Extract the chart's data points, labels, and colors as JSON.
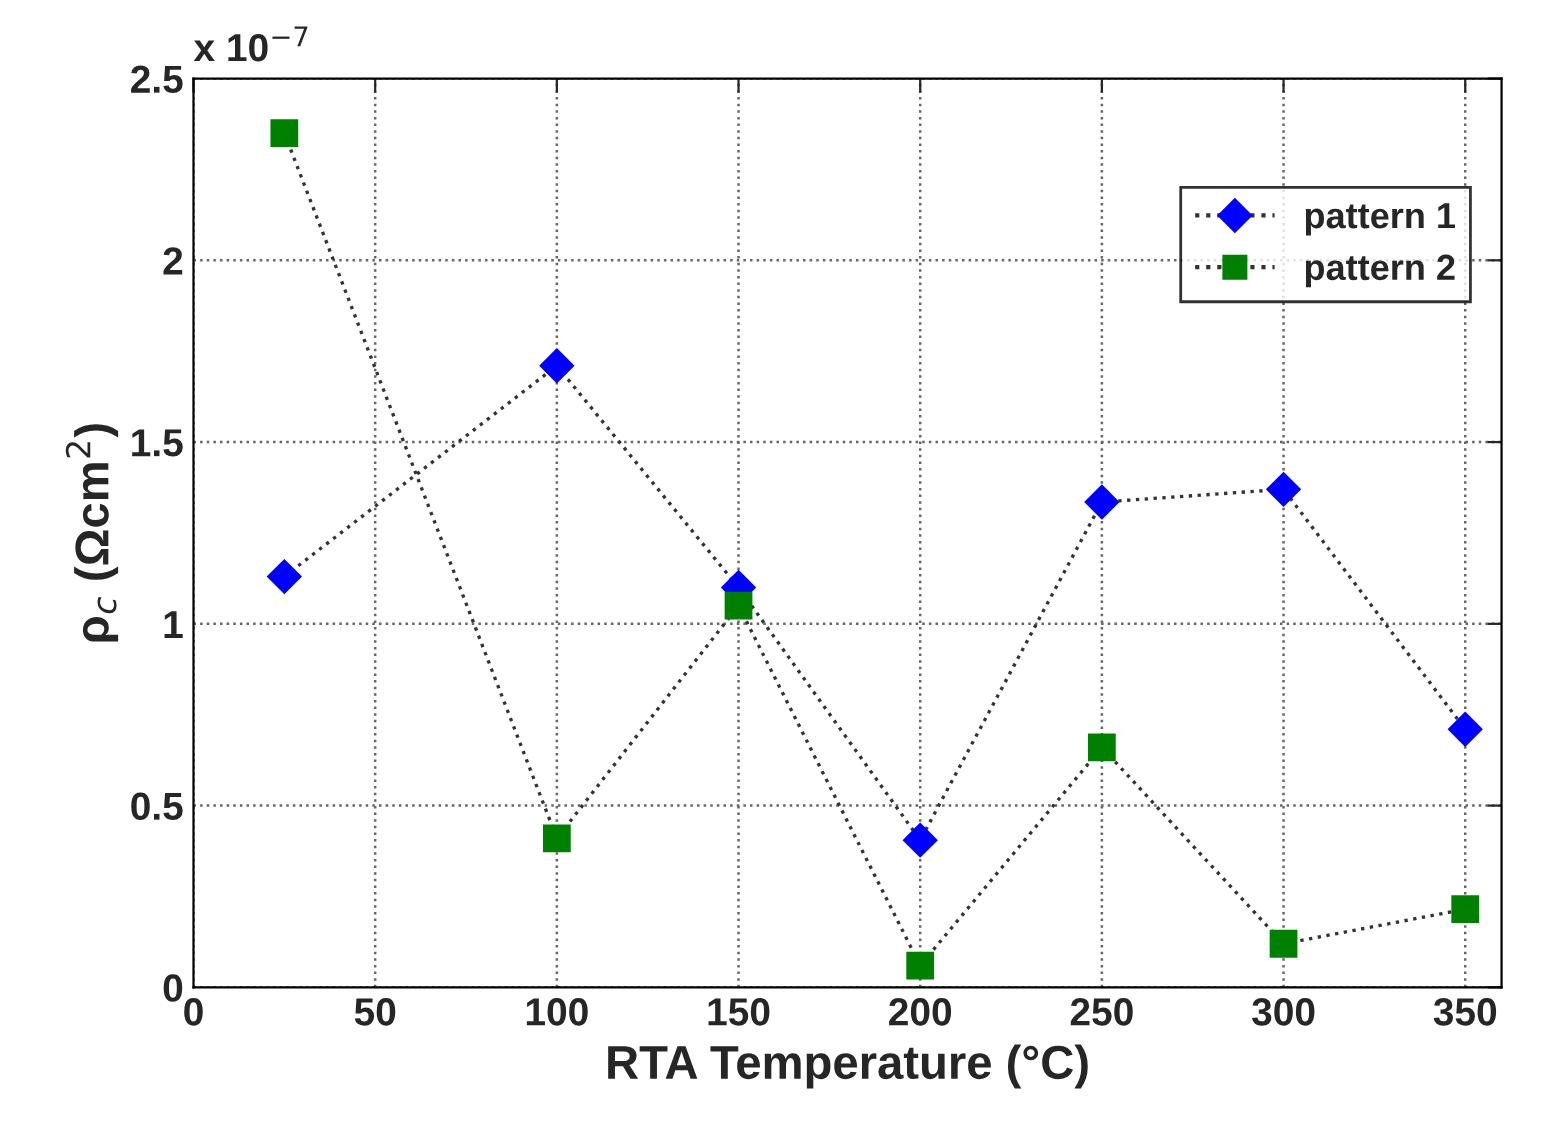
{
  "chart_data": {
    "type": "line",
    "xlabel": "RTA Temperature (°C)",
    "ylabel": "ρ$_{c}$ (Ωcm$^{2}$)",
    "annotations": [
      "x 10$^{−7}$"
    ],
    "x": [
      25,
      100,
      150,
      200,
      250,
      300,
      350
    ],
    "series": [
      {
        "name": "pattern 1",
        "color": "#0000ff",
        "marker": "diamond",
        "values": [
          1.13,
          1.71,
          1.1,
          0.405,
          1.335,
          1.37,
          0.71
        ]
      },
      {
        "name": "pattern 2",
        "color": "#008000",
        "marker": "square",
        "values": [
          2.35,
          0.41,
          1.05,
          0.06,
          0.66,
          0.12,
          0.215
        ]
      }
    ],
    "xlim": [
      0,
      360
    ],
    "xticks": [
      0,
      50,
      100,
      150,
      200,
      250,
      300,
      350
    ],
    "ylim": [
      0,
      2.5
    ],
    "yticks": [
      0,
      0.5,
      1,
      1.5,
      2,
      2.5
    ],
    "grid": true,
    "legend": "top right",
    "line_style": "dotted"
  }
}
